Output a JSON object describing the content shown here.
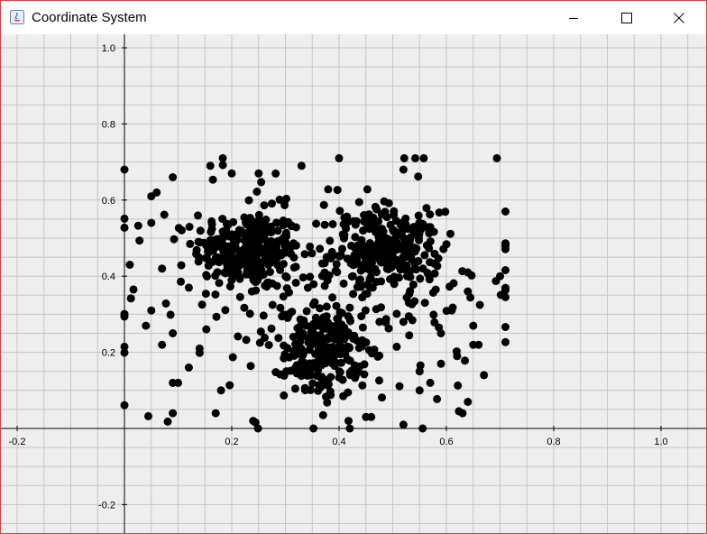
{
  "window": {
    "title": "Coordinate System",
    "controls": [
      "minimize-icon",
      "maximize-icon",
      "close-icon"
    ]
  },
  "colors": {
    "background": "#eeeeee",
    "grid": "#c6c6c6",
    "axis": "#000000",
    "point": "#000000"
  },
  "chart_data": {
    "type": "scatter",
    "grid": true,
    "xlim": [
      -0.23,
      1.08
    ],
    "ylim": [
      -0.27,
      1.06
    ],
    "x_ticks": [
      "-0.2",
      "0.2",
      "0.4",
      "0.6",
      "0.8",
      "1.0"
    ],
    "y_ticks": [
      "1.0",
      "0.8",
      "0.6",
      "0.4",
      "0.2",
      "-0.2"
    ],
    "clusters": [
      {
        "center": [
          0.23,
          0.47
        ],
        "spread": [
          0.05,
          0.05
        ],
        "count": 260
      },
      {
        "center": [
          0.49,
          0.47
        ],
        "spread": [
          0.05,
          0.05
        ],
        "count": 230
      },
      {
        "center": [
          0.37,
          0.2
        ],
        "spread": [
          0.035,
          0.06
        ],
        "count": 200
      },
      {
        "center": [
          0.38,
          0.37
        ],
        "spread": [
          0.19,
          0.16
        ],
        "count": 230
      }
    ],
    "points": [
      [
        0.0,
        0.68
      ],
      [
        0.01,
        0.43
      ],
      [
        0.04,
        0.27
      ],
      [
        0.05,
        0.31
      ],
      [
        0.05,
        0.54
      ],
      [
        0.05,
        0.61
      ],
      [
        0.06,
        0.62
      ],
      [
        0.07,
        0.42
      ],
      [
        0.07,
        0.22
      ],
      [
        0.09,
        0.66
      ],
      [
        0.09,
        0.25
      ],
      [
        0.09,
        0.12
      ],
      [
        0.09,
        0.04
      ],
      [
        0.1,
        0.12
      ],
      [
        0.12,
        0.16
      ],
      [
        0.12,
        0.37
      ],
      [
        0.14,
        0.21
      ],
      [
        0.16,
        0.69
      ],
      [
        0.17,
        0.04
      ],
      [
        0.18,
        0.1
      ],
      [
        0.2,
        0.67
      ],
      [
        0.24,
        0.02
      ],
      [
        0.25,
        0.67
      ],
      [
        0.33,
        0.69
      ],
      [
        0.4,
        0.71
      ],
      [
        0.42,
        0.0
      ],
      [
        0.45,
        0.03
      ],
      [
        0.46,
        0.03
      ],
      [
        0.52,
        0.68
      ],
      [
        0.52,
        0.01
      ],
      [
        0.55,
        0.1
      ],
      [
        0.55,
        0.15
      ],
      [
        0.57,
        0.12
      ],
      [
        0.59,
        0.17
      ],
      [
        0.62,
        0.19
      ],
      [
        0.63,
        0.04
      ],
      [
        0.64,
        0.07
      ],
      [
        0.64,
        0.36
      ],
      [
        0.64,
        0.41
      ],
      [
        0.65,
        0.27
      ],
      [
        0.65,
        0.22
      ],
      [
        0.66,
        0.22
      ],
      [
        0.67,
        0.14
      ],
      [
        0.7,
        0.4
      ],
      [
        0.71,
        0.57
      ],
      [
        0.61,
        0.31
      ],
      [
        0.56,
        0.33
      ],
      [
        0.53,
        0.33
      ],
      [
        0.59,
        0.25
      ],
      [
        0.52,
        0.28
      ]
    ]
  }
}
